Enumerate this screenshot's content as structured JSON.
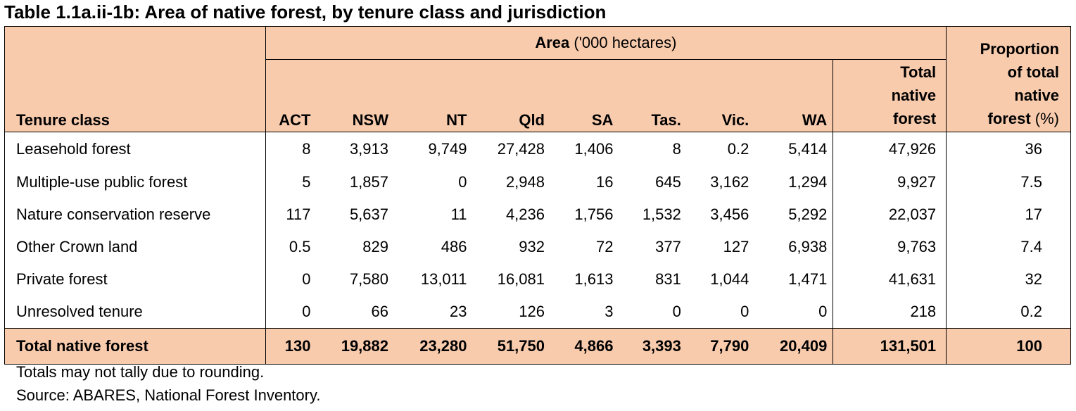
{
  "title": "Table 1.1a.ii-1b: Area of native forest, by tenure class and jurisdiction",
  "header": {
    "area_label_bold": "Area",
    "area_label_rest": " ('000 hectares)",
    "proportion_bold": [
      "Proportion",
      "of total",
      "native",
      "forest"
    ],
    "proportion_unit": " (%)",
    "tenure_class": "Tenure class",
    "columns": [
      "ACT",
      "NSW",
      "NT",
      "Qld",
      "SA",
      "Tas.",
      "Vic.",
      "WA"
    ],
    "total_col": [
      "Total",
      "native",
      "forest"
    ]
  },
  "rows": [
    {
      "label": "Leasehold forest",
      "values": [
        "8",
        "3,913",
        "9,749",
        "27,428",
        "1,406",
        "8",
        "0.2",
        "5,414"
      ],
      "total": "47,926",
      "proportion": "36"
    },
    {
      "label": "Multiple-use public forest",
      "values": [
        "5",
        "1,857",
        "0",
        "2,948",
        "16",
        "645",
        "3,162",
        "1,294"
      ],
      "total": "9,927",
      "proportion": "7.5"
    },
    {
      "label": "Nature conservation reserve",
      "values": [
        "117",
        "5,637",
        "11",
        "4,236",
        "1,756",
        "1,532",
        "3,456",
        "5,292"
      ],
      "total": "22,037",
      "proportion": "17"
    },
    {
      "label": "Other Crown land",
      "values": [
        "0.5",
        "829",
        "486",
        "932",
        "72",
        "377",
        "127",
        "6,938"
      ],
      "total": "9,763",
      "proportion": "7.4"
    },
    {
      "label": "Private forest",
      "values": [
        "0",
        "7,580",
        "13,011",
        "16,081",
        "1,613",
        "831",
        "1,044",
        "1,471"
      ],
      "total": "41,631",
      "proportion": "32"
    },
    {
      "label": "Unresolved tenure",
      "values": [
        "0",
        "66",
        "23",
        "126",
        "3",
        "0",
        "0",
        "0"
      ],
      "total": "218",
      "proportion": "0.2"
    }
  ],
  "total_row": {
    "label": "Total native forest",
    "values": [
      "130",
      "19,882",
      "23,280",
      "51,750",
      "4,866",
      "3,393",
      "7,790",
      "20,409"
    ],
    "total": "131,501",
    "proportion": "100"
  },
  "notes": [
    "Totals may not tally due to rounding.",
    "Source: ABARES, National Forest Inventory."
  ],
  "colors": {
    "header_fill": "#f8cbad",
    "border": "#000000"
  }
}
